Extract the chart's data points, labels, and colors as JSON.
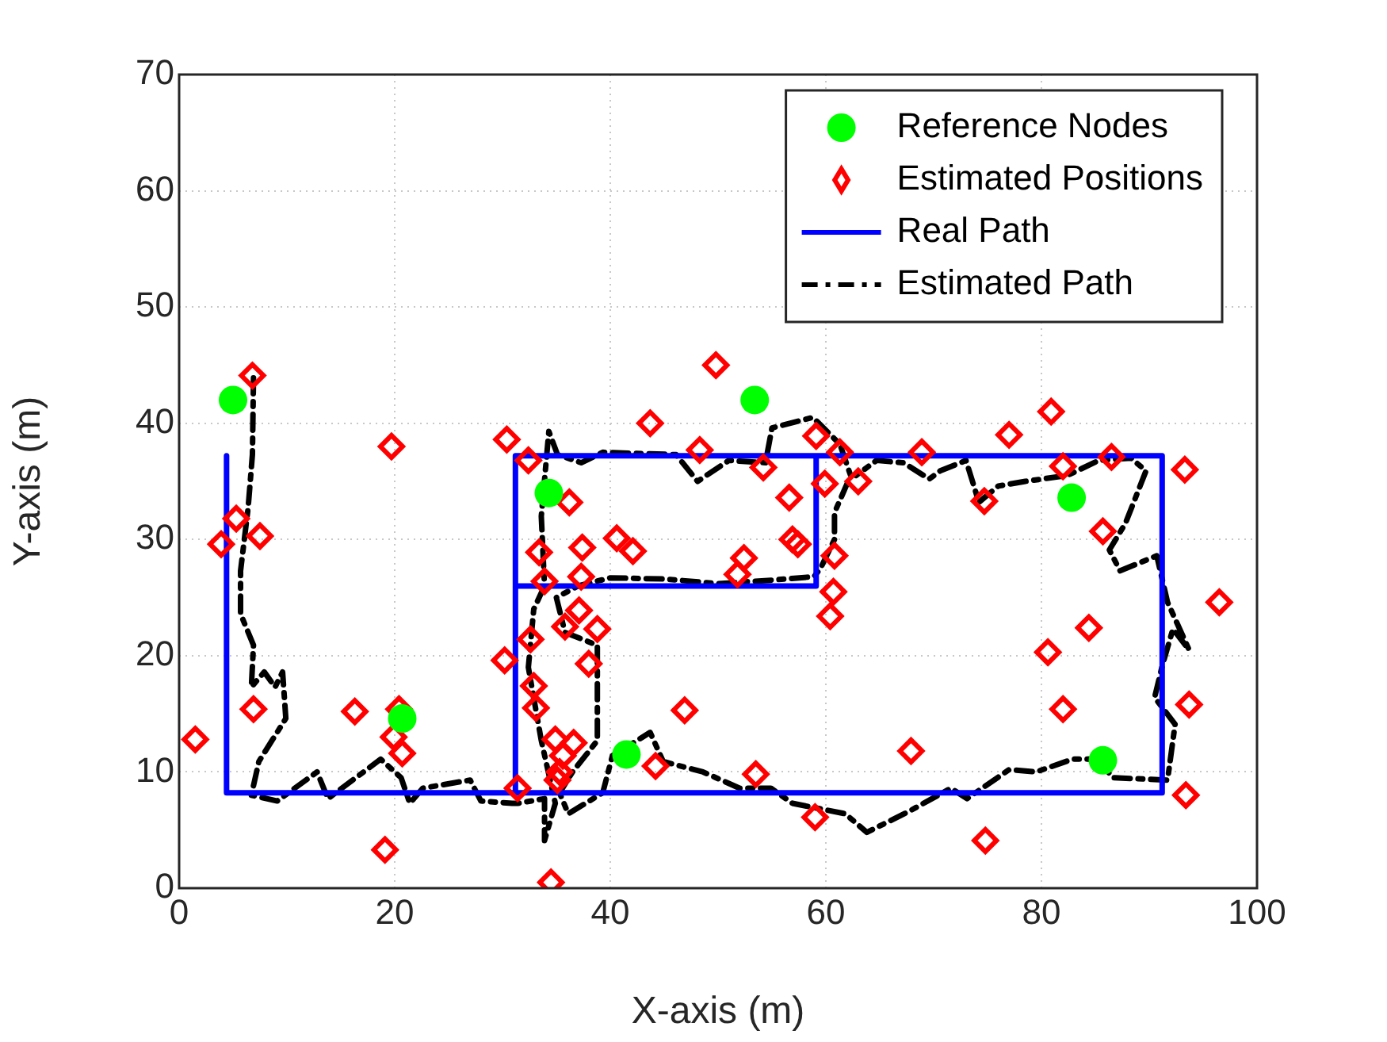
{
  "chart_data": {
    "type": "scatter",
    "xlabel": "X-axis (m)",
    "ylabel": "Y-axis (m)",
    "xlim": [
      0,
      100
    ],
    "xticks": [
      0,
      20,
      40,
      60,
      80,
      100
    ],
    "ylim": [
      0,
      70
    ],
    "yticks": [
      0,
      10,
      20,
      30,
      40,
      50,
      60,
      70
    ],
    "grid": true,
    "legend": "top right",
    "series": [
      {
        "name": "Reference Nodes",
        "type": "scatter",
        "marker": "circle",
        "color": "#00ff00",
        "x": [
          5,
          20.7,
          34.3,
          53.4,
          41.5,
          82.8,
          85.7
        ],
        "values": [
          42,
          14.6,
          34,
          42,
          11.5,
          33.6,
          11
        ]
      },
      {
        "name": "Estimated Positions",
        "type": "scatter",
        "marker": "diamond",
        "color": "#ff0000",
        "x": [
          6.8,
          19.7,
          5.3,
          3.9,
          7.5,
          6.9,
          1.5,
          16.3,
          20.4,
          19.9,
          20.7,
          19.1,
          30.4,
          30.2,
          31.4,
          32.4,
          43.7,
          36.2,
          33.4,
          37.4,
          40.6,
          42.1,
          48.3,
          54.2,
          56.6,
          56.9,
          57.4,
          52.4,
          51.8,
          59.1,
          59.9,
          61.3,
          63,
          60.8,
          60.7,
          60.4,
          33.9,
          37.3,
          37.1,
          35.8,
          38.8,
          32.6,
          38,
          32.9,
          33.1,
          46.9,
          34.9,
          36.6,
          35.6,
          44.2,
          35.3,
          35.1,
          53.5,
          59,
          34.5,
          49.8,
          80.9,
          77,
          68.9,
          86.5,
          82,
          93.3,
          74.7,
          85.7,
          96.5,
          84.4,
          80.6,
          82,
          93.7,
          67.9,
          93.4,
          74.8
        ],
        "values": [
          44.1,
          38,
          31.8,
          29.6,
          30.3,
          15.4,
          12.8,
          15.2,
          15.4,
          13,
          11.6,
          3.3,
          38.6,
          19.6,
          8.6,
          36.8,
          40,
          33.2,
          28.9,
          29.3,
          30.1,
          29,
          37.7,
          36.2,
          33.6,
          30,
          29.6,
          28.4,
          27,
          38.9,
          34.8,
          37.5,
          35,
          28.6,
          25.5,
          23.4,
          26.4,
          26.8,
          23.9,
          22.5,
          22.3,
          21.4,
          19.3,
          17.4,
          15.5,
          15.3,
          12.8,
          12.5,
          11.4,
          10.5,
          10,
          9.3,
          9.8,
          6.1,
          0.5,
          45,
          41,
          39,
          37.5,
          37.1,
          36.3,
          36,
          33.3,
          30.7,
          24.6,
          22.4,
          20.3,
          15.4,
          15.8,
          11.8,
          8,
          4.1
        ]
      },
      {
        "name": "Real Path",
        "type": "line",
        "marker": "none",
        "line_style": "solid",
        "color": "#0000ff",
        "x": [
          4.4,
          4.4,
          31.2,
          31.2,
          91.2,
          91.2,
          31.2,
          31.2,
          59.1,
          59.1
        ],
        "values": [
          37.2,
          8.2,
          8.2,
          37.2,
          37.2,
          8.2,
          8.2,
          26,
          26,
          37.2
        ]
      },
      {
        "name": "Estimated Path",
        "type": "line",
        "marker": "none",
        "line_style": "dashed",
        "color": "#000000",
        "x": [
          6.9,
          6.8,
          6.4,
          5.7,
          5.7,
          6.9,
          6.7,
          7.9,
          8.9,
          9.6,
          9.9,
          7.4,
          6.7,
          9.1,
          12.8,
          13.8,
          18.7,
          20.6,
          21.4,
          22.6,
          27,
          28,
          30.9,
          31.4,
          33.9,
          33.9,
          34.9,
          33.6,
          32.4,
          32.9,
          33.9,
          33.6,
          34.3,
          35.1,
          37.3,
          39.3,
          46.1,
          48.1,
          51,
          54.4,
          55,
          58.8,
          61.3,
          62.3,
          60.8,
          60.8,
          59.5,
          58.9,
          55,
          50,
          45,
          40,
          37,
          35,
          35.8,
          38.8,
          38.8,
          36.5,
          35.3,
          36.1,
          39.3,
          40.2,
          43.7,
          44.9,
          48.6,
          52,
          54.9,
          56.9,
          61.8,
          63.8,
          67.7,
          71.6,
          73.1,
          77,
          79.5,
          82.9,
          85.3,
          86.6,
          91.7,
          92.4,
          90.5,
          91.2,
          92.2,
          93.7,
          91.7,
          90.7,
          87.3,
          86.3,
          87.8,
          89.7,
          88.3,
          85.3,
          82.4,
          78.5,
          76,
          74.2,
          73,
          70.6,
          69.6,
          67.2,
          64.7,
          62.8
        ],
        "values": [
          43.9,
          37.3,
          32.7,
          27.3,
          23.6,
          20.9,
          17.3,
          18.6,
          17.3,
          18.6,
          14.6,
          10.9,
          8,
          7.5,
          10,
          7.7,
          11.1,
          9.5,
          7.3,
          8.6,
          9.3,
          7.5,
          7.3,
          7.3,
          7.7,
          4.1,
          7.3,
          12.7,
          19,
          24,
          26,
          32,
          39.3,
          37.3,
          36.6,
          37.5,
          37.3,
          35,
          36.8,
          36.6,
          39.6,
          40.5,
          38.2,
          35.5,
          32.3,
          30,
          27.5,
          26.8,
          26.5,
          26.2,
          26.6,
          26.7,
          26,
          25,
          22,
          20.9,
          12.7,
          10,
          8.2,
          6.4,
          8.2,
          11.4,
          13.4,
          10.9,
          10,
          8.6,
          8.6,
          7.3,
          6.4,
          4.8,
          6.6,
          8.6,
          7.7,
          10.2,
          10,
          11.1,
          11.1,
          9.5,
          9.3,
          14.1,
          16.4,
          19.1,
          22.3,
          20.5,
          24.6,
          28.6,
          27.3,
          29.1,
          31.4,
          35.9,
          37,
          36.8,
          35.5,
          35,
          34.6,
          33.2,
          36.8,
          35.9,
          35.2,
          36.6,
          36.8,
          35.5
        ]
      }
    ]
  }
}
